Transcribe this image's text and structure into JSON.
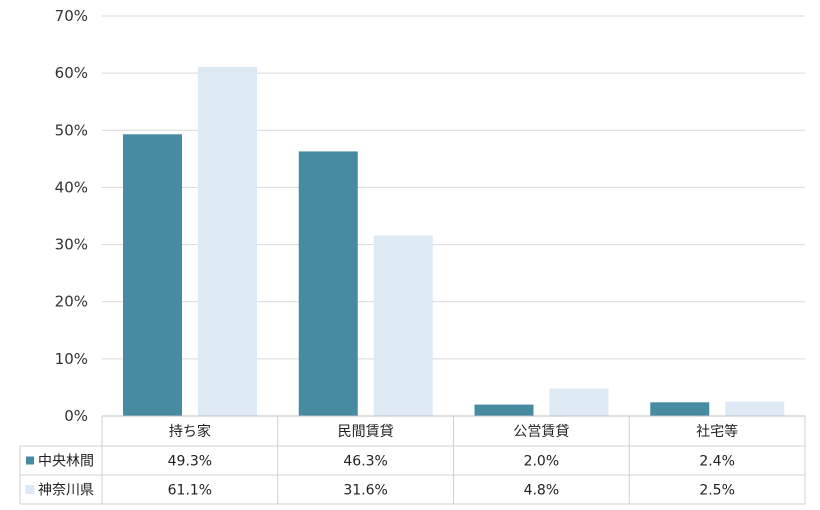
{
  "chart_data": {
    "type": "bar",
    "categories": [
      "持ち家",
      "民間賃貸",
      "公営賃貸",
      "社宅等"
    ],
    "series": [
      {
        "name": "中央林間",
        "values": [
          49.3,
          46.3,
          2.0,
          2.4
        ],
        "labels": [
          "49.3%",
          "46.3%",
          "2.0%",
          "2.4%"
        ],
        "color": "#478BA3"
      },
      {
        "name": "神奈川県",
        "values": [
          61.1,
          31.6,
          4.8,
          2.5
        ],
        "labels": [
          "61.1%",
          "31.6%",
          "4.8%",
          "2.5%"
        ],
        "color": "#DDEAF6"
      }
    ],
    "ylim": [
      0,
      70
    ],
    "yticks": [
      "0%",
      "10%",
      "20%",
      "30%",
      "40%",
      "50%",
      "60%",
      "70%"
    ],
    "grid": true,
    "legend": "data-table-left"
  }
}
